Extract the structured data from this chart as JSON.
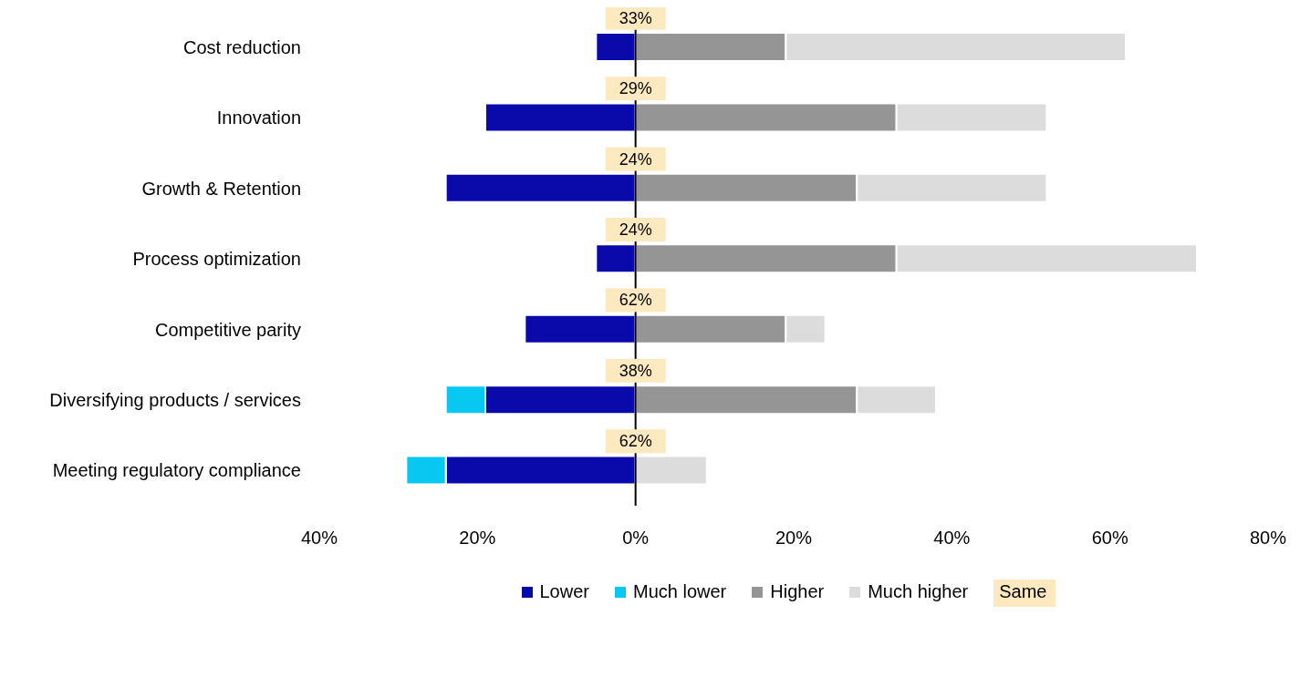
{
  "chart_data": {
    "type": "bar",
    "orientation": "horizontal",
    "stacked": true,
    "legend": "bottom",
    "categories": [
      "Cost reduction",
      "Innovation",
      "Growth & Retention",
      "Process optimization",
      "Competitive parity",
      "Diversifying products / services",
      "Meeting regulatory compliance"
    ],
    "series": [
      {
        "name": "Lower",
        "color": "#0a0aaa",
        "values": [
          -5,
          -19,
          -24,
          -5,
          -14,
          -19,
          -24
        ]
      },
      {
        "name": "Much lower",
        "color": "#08c8f2",
        "values": [
          0,
          0,
          0,
          0,
          0,
          -5,
          -5
        ]
      },
      {
        "name": "Higher",
        "color": "#959595",
        "values": [
          19,
          33,
          28,
          33,
          19,
          28,
          0
        ]
      },
      {
        "name": "Much higher",
        "color": "#dcdcdc",
        "values": [
          43,
          19,
          24,
          38,
          5,
          10,
          9
        ]
      }
    ],
    "annotations": [
      {
        "text": "33%",
        "y": "Cost reduction"
      },
      {
        "text": "29%",
        "y": "Innovation"
      },
      {
        "text": "24%",
        "y": "Growth & Retention"
      },
      {
        "text": "24%",
        "y": "Process optimization"
      },
      {
        "text": "62%",
        "y": "Competitive parity"
      },
      {
        "text": "38%",
        "y": "Diversifying products / services"
      },
      {
        "text": "62%",
        "y": "Meeting regulatory compliance"
      },
      "Same"
    ],
    "xlim": [
      -40,
      80
    ],
    "xticks": [
      {
        "value": -40,
        "label": "40%"
      },
      {
        "value": -20,
        "label": "20%"
      },
      {
        "value": 0,
        "label": "0%"
      },
      {
        "value": 20,
        "label": "20%"
      },
      {
        "value": 40,
        "label": "40%"
      },
      {
        "value": 60,
        "label": "60%"
      },
      {
        "value": 80,
        "label": "80%"
      }
    ]
  }
}
